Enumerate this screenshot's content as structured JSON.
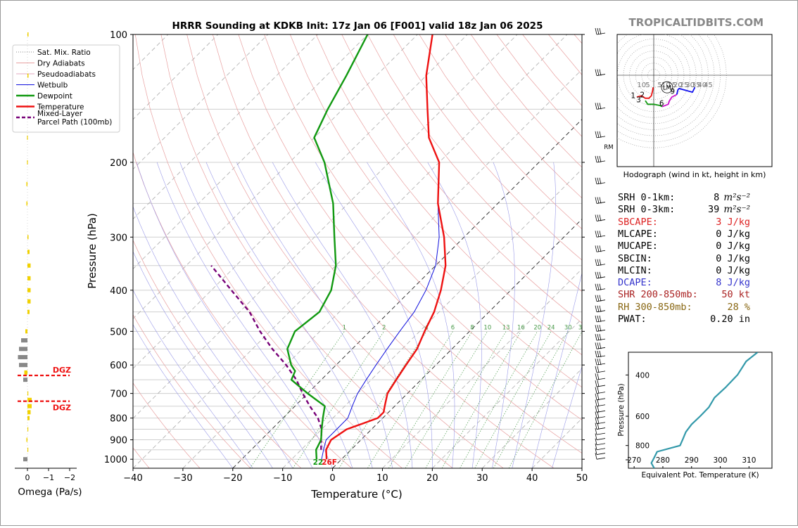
{
  "watermark": "TROPICALTIDBITS.COM",
  "chart_data": [
    {
      "type": "line",
      "subtype": "skew-t-log-p",
      "title": "HRRR Sounding at KDKB Init: 17z Jan 06 [F001] valid 18z Jan 06 2025",
      "xlabel": "Temperature (°C)",
      "ylabel": "Pressure (hPa)",
      "xlim": [
        -40,
        50
      ],
      "ylim": [
        1050,
        100
      ],
      "y_scale": "log",
      "x_ticks": [
        "−40",
        "−30",
        "−20",
        "−10",
        "0",
        "10",
        "20",
        "30",
        "40",
        "50"
      ],
      "y_ticks": [
        "100",
        "200",
        "300",
        "400",
        "500",
        "600",
        "700",
        "800",
        "900",
        "1000"
      ],
      "legend": {
        "placement": "left-outside",
        "entries": [
          {
            "label": "Sat. Mix. Ratio",
            "color": "#888888",
            "style": "dotted"
          },
          {
            "label": "Dry Adiabats",
            "color": "#e8a0a0",
            "style": "solid"
          },
          {
            "label": "Pseudoadiabats",
            "color": "#e0a8c0",
            "style": "solid"
          },
          {
            "label": "Wetbulb",
            "color": "#1010dd",
            "style": "solid"
          },
          {
            "label": "Dewpoint",
            "color": "#119911",
            "style": "solid-thick"
          },
          {
            "label": "Temperature",
            "color": "#ee1111",
            "style": "solid-thick"
          },
          {
            "label": "Mixed-Layer\nParcel Path (100mb)",
            "color": "#770077",
            "style": "dashed"
          }
        ]
      },
      "series": [
        {
          "name": "Temperature",
          "color": "#ee1111",
          "points": [
            [
              1000,
              -3
            ],
            [
              950,
              -5
            ],
            [
              900,
              -6
            ],
            [
              850,
              -5
            ],
            [
              825,
              -3
            ],
            [
              800,
              -1
            ],
            [
              775,
              -1
            ],
            [
              750,
              -2
            ],
            [
              700,
              -4
            ],
            [
              650,
              -5
            ],
            [
              600,
              -6
            ],
            [
              550,
              -7
            ],
            [
              500,
              -9
            ],
            [
              450,
              -11
            ],
            [
              400,
              -14
            ],
            [
              350,
              -18
            ],
            [
              300,
              -24
            ],
            [
              250,
              -32
            ],
            [
              200,
              -40
            ],
            [
              175,
              -47
            ],
            [
              150,
              -53
            ],
            [
              125,
              -60
            ],
            [
              100,
              -67
            ]
          ]
        },
        {
          "name": "Dewpoint",
          "color": "#119911",
          "points": [
            [
              1000,
              -5
            ],
            [
              950,
              -7
            ],
            [
              900,
              -8
            ],
            [
              850,
              -10
            ],
            [
              800,
              -12
            ],
            [
              750,
              -14
            ],
            [
              700,
              -20
            ],
            [
              650,
              -26
            ],
            [
              620,
              -27
            ],
            [
              600,
              -29
            ],
            [
              550,
              -33
            ],
            [
              500,
              -35
            ],
            [
              450,
              -34
            ],
            [
              400,
              -36
            ],
            [
              350,
              -40
            ],
            [
              300,
              -46
            ],
            [
              250,
              -53
            ],
            [
              200,
              -63
            ],
            [
              175,
              -70
            ],
            [
              150,
              -73
            ],
            [
              125,
              -76
            ],
            [
              100,
              -80
            ]
          ]
        },
        {
          "name": "Wetbulb",
          "color": "#1010dd",
          "points": [
            [
              1000,
              -4
            ],
            [
              950,
              -5.5
            ],
            [
              900,
              -7
            ],
            [
              850,
              -7
            ],
            [
              800,
              -7
            ],
            [
              750,
              -8.5
            ],
            [
              700,
              -10
            ],
            [
              650,
              -11
            ],
            [
              600,
              -12
            ],
            [
              550,
              -13
            ],
            [
              500,
              -14
            ],
            [
              450,
              -15
            ],
            [
              400,
              -17
            ],
            [
              350,
              -20
            ],
            [
              300,
              -25
            ],
            [
              250,
              -32
            ],
            [
              200,
              -40
            ],
            [
              175,
              -47
            ],
            [
              150,
              -53
            ],
            [
              125,
              -60
            ],
            [
              100,
              -67
            ]
          ]
        },
        {
          "name": "Mixed-Layer Parcel Path (100mb)",
          "color": "#770077",
          "points": [
            [
              950,
              -6
            ],
            [
              900,
              -8
            ],
            [
              850,
              -10
            ],
            [
              800,
              -13
            ],
            [
              750,
              -17
            ],
            [
              700,
              -21
            ],
            [
              650,
              -25
            ],
            [
              600,
              -30
            ],
            [
              550,
              -36
            ],
            [
              500,
              -42
            ],
            [
              450,
              -48
            ],
            [
              400,
              -56
            ],
            [
              350,
              -65
            ]
          ]
        }
      ],
      "mixing_ratio_labels": [
        "1",
        "2",
        "4",
        "6",
        "8",
        "10",
        "13",
        "16",
        "20",
        "24",
        "30",
        "36"
      ],
      "surface_labels": {
        "dewpoint": "22",
        "temperature": "26F"
      }
    },
    {
      "type": "bar",
      "orientation": "horizontal",
      "xlabel": "Omega (Pa/s)",
      "x_ticks": [
        "0",
        "−1",
        "−2"
      ],
      "xlim": [
        0.3,
        -2.3
      ],
      "dgz_label": "DGZ",
      "dgz_levels": [
        635,
        730
      ],
      "values": [
        {
          "p": 1000,
          "v": 0.2
        },
        {
          "p": 950,
          "v": 0.0
        },
        {
          "p": 900,
          "v": 0.05
        },
        {
          "p": 850,
          "v": 0.0
        },
        {
          "p": 800,
          "v": -0.1
        },
        {
          "p": 775,
          "v": -0.15
        },
        {
          "p": 750,
          "v": -0.2
        },
        {
          "p": 725,
          "v": -0.2
        },
        {
          "p": 700,
          "v": 0.0
        },
        {
          "p": 650,
          "v": 0.2
        },
        {
          "p": 625,
          "v": 0.15
        },
        {
          "p": 600,
          "v": 0.4
        },
        {
          "p": 575,
          "v": 0.45
        },
        {
          "p": 550,
          "v": 0.4
        },
        {
          "p": 525,
          "v": 0.3
        },
        {
          "p": 500,
          "v": 0.1
        },
        {
          "p": 450,
          "v": -0.1
        },
        {
          "p": 425,
          "v": -0.15
        },
        {
          "p": 400,
          "v": -0.15
        },
        {
          "p": 375,
          "v": -0.15
        },
        {
          "p": 350,
          "v": -0.15
        },
        {
          "p": 325,
          "v": -0.1
        },
        {
          "p": 300,
          "v": -0.05
        },
        {
          "p": 250,
          "v": 0.05
        },
        {
          "p": 225,
          "v": 0.05
        },
        {
          "p": 200,
          "v": 0.02
        },
        {
          "p": 175,
          "v": 0.02
        },
        {
          "p": 125,
          "v": -0.05
        },
        {
          "p": 100,
          "v": -0.05
        }
      ]
    },
    {
      "type": "line",
      "subtype": "hodograph",
      "caption": "Hodograph (wind in kt, height in km)",
      "ring_labels": [
        "10",
        "5",
        "5",
        "10",
        "15",
        "20",
        "25",
        "30",
        "35",
        "40",
        "45"
      ],
      "height_labels": [
        "1",
        "2",
        "3",
        "6",
        "9"
      ],
      "markers": {
        "lm": "LM",
        "rm": "RM"
      },
      "series": [
        {
          "name": "0-3 km",
          "color": "#ee1111",
          "points": [
            [
              -14,
              -18
            ],
            [
              -10,
              -17
            ],
            [
              -7,
              -19
            ],
            [
              -4,
              -19
            ],
            [
              -2,
              -17
            ],
            [
              -1,
              -13
            ],
            [
              -0.5,
              -10
            ]
          ]
        },
        {
          "name": "3-6 km",
          "color": "#119911",
          "points": [
            [
              -7,
              -21
            ],
            [
              -5,
              -24
            ],
            [
              0,
              -24
            ],
            [
              5,
              -25
            ],
            [
              7,
              -26
            ]
          ]
        },
        {
          "name": "6-9 km",
          "color": "#cc11cc",
          "points": [
            [
              7,
              -26
            ],
            [
              12,
              -24
            ],
            [
              13,
              -21
            ],
            [
              15,
              -18
            ],
            [
              19,
              -16
            ]
          ]
        },
        {
          "name": "9-12 km",
          "color": "#1111ee",
          "points": [
            [
              19,
              -16
            ],
            [
              20,
              -12
            ],
            [
              21,
              -11
            ],
            [
              32,
              -14
            ],
            [
              34,
              -10
            ]
          ]
        }
      ]
    },
    {
      "type": "line",
      "xlabel": "Equivalent Pot. Temperature (K)",
      "ylabel": "Pressure (hPa)",
      "x_ticks": [
        "270",
        "280",
        "290",
        "300",
        "310"
      ],
      "y_ticks": [
        "400",
        "600",
        "800"
      ],
      "xlim": [
        268,
        318
      ],
      "ylim": [
        1000,
        320
      ],
      "series": [
        {
          "name": "Theta-E",
          "color": "#3399aa",
          "points": [
            [
              1000,
              277
            ],
            [
              950,
              276
            ],
            [
              900,
              277
            ],
            [
              850,
              278
            ],
            [
              800,
              286
            ],
            [
              750,
              287
            ],
            [
              700,
              288
            ],
            [
              650,
              290
            ],
            [
              600,
              293
            ],
            [
              550,
              296
            ],
            [
              500,
              298
            ],
            [
              450,
              302
            ],
            [
              400,
              306
            ],
            [
              350,
              309
            ],
            [
              320,
              313
            ]
          ]
        }
      ]
    }
  ],
  "indices": [
    {
      "label": "SRH 0-1km:",
      "value": "8",
      "unit": "m²s⁻²",
      "color": "#000000"
    },
    {
      "label": "SRH 0-3km:",
      "value": "39",
      "unit": "m²s⁻²",
      "color": "#000000"
    },
    {
      "label": "SBCAPE:",
      "value": "3 J/kg",
      "color": "#dd2222"
    },
    {
      "label": "MLCAPE:",
      "value": "0 J/kg",
      "color": "#000000"
    },
    {
      "label": "MUCAPE:",
      "value": "0 J/kg",
      "color": "#000000"
    },
    {
      "label": "SBCIN:",
      "value": "0 J/kg",
      "color": "#000000"
    },
    {
      "label": "MLCIN:",
      "value": "0 J/kg",
      "color": "#000000"
    },
    {
      "label": "DCAPE:",
      "value": "8 J/kg",
      "color": "#3333cc"
    },
    {
      "label": "SHR 200-850mb:",
      "value": "50 kt",
      "color": "#aa2222"
    },
    {
      "label": "RH 300-850mb:",
      "value": "28 %",
      "color": "#886611"
    },
    {
      "label": "PWAT:",
      "value": "0.20 in",
      "color": "#000000"
    }
  ]
}
